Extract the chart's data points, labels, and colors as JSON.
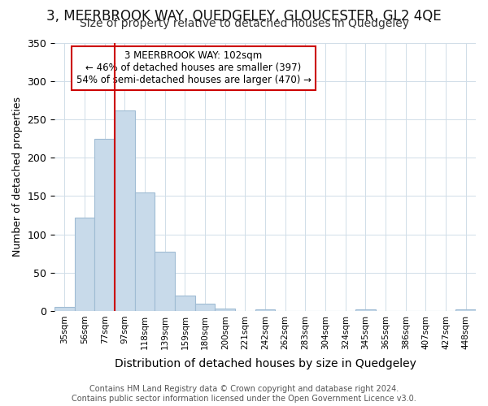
{
  "title": "3, MEERBROOK WAY, QUEDGELEY, GLOUCESTER, GL2 4QE",
  "subtitle": "Size of property relative to detached houses in Quedgeley",
  "xlabel": "Distribution of detached houses by size in Quedgeley",
  "ylabel": "Number of detached properties",
  "footer": "Contains HM Land Registry data © Crown copyright and database right 2024.\nContains public sector information licensed under the Open Government Licence v3.0.",
  "categories": [
    "35sqm",
    "56sqm",
    "77sqm",
    "97sqm",
    "118sqm",
    "139sqm",
    "159sqm",
    "180sqm",
    "200sqm",
    "221sqm",
    "242sqm",
    "262sqm",
    "283sqm",
    "304sqm",
    "324sqm",
    "345sqm",
    "365sqm",
    "386sqm",
    "407sqm",
    "427sqm",
    "448sqm"
  ],
  "bar_heights": [
    5,
    122,
    224,
    262,
    155,
    77,
    20,
    9,
    3,
    0,
    2,
    0,
    0,
    0,
    0,
    2,
    0,
    0,
    0,
    0,
    2
  ],
  "bar_color": "#c8daea",
  "bar_edge_color": "#a0bcd4",
  "red_line_index": 3,
  "annotation_line1": "3 MEERBROOK WAY: 102sqm",
  "annotation_line2": "← 46% of detached houses are smaller (397)",
  "annotation_line3": "54% of semi-detached houses are larger (470) →",
  "ylim": [
    0,
    350
  ],
  "yticks": [
    0,
    50,
    100,
    150,
    200,
    250,
    300,
    350
  ],
  "bg_color": "#ffffff",
  "plot_bg_color": "#ffffff",
  "annotation_box_color": "#ffffff",
  "annotation_box_edge": "#cc0000",
  "red_line_color": "#cc0000",
  "title_fontsize": 12,
  "subtitle_fontsize": 10,
  "grid_color": "#d0dde8"
}
